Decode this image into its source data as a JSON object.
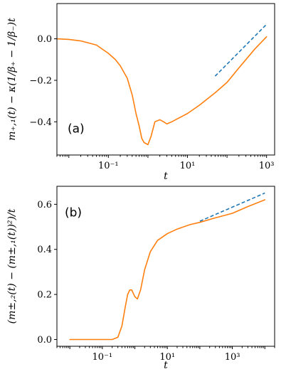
{
  "chart_data": [
    {
      "type": "line",
      "panel_label": "(a)",
      "xlabel": "t",
      "ylabel": "m₊,₁(t) − κ(1/β₊ − 1/β₋)t",
      "xscale": "log",
      "xlim": [
        0.005,
        1600
      ],
      "ylim": [
        -0.56,
        0.17
      ],
      "xticks": [
        0.1,
        10,
        1000
      ],
      "xtick_labels": [
        "10⁻¹",
        "10¹",
        "10³"
      ],
      "yticks": [
        0.0,
        -0.2,
        -0.4
      ],
      "ytick_labels": [
        "0.0",
        "−0.2",
        "−0.4"
      ],
      "series": [
        {
          "color": "#ff7f0e",
          "style": "solid",
          "x": [
            0.005,
            0.01,
            0.02,
            0.05,
            0.1,
            0.15,
            0.2,
            0.3,
            0.4,
            0.5,
            0.6,
            0.7,
            0.8,
            1.0,
            1.2,
            1.5,
            2.0,
            2.5,
            3.0,
            4.0,
            5.0,
            10,
            20,
            50,
            100,
            200,
            500,
            1000
          ],
          "y": [
            0.0,
            -0.003,
            -0.01,
            -0.03,
            -0.07,
            -0.1,
            -0.13,
            -0.19,
            -0.27,
            -0.36,
            -0.42,
            -0.48,
            -0.5,
            -0.51,
            -0.47,
            -0.4,
            -0.39,
            -0.4,
            -0.41,
            -0.4,
            -0.39,
            -0.36,
            -0.32,
            -0.26,
            -0.21,
            -0.14,
            -0.05,
            0.01
          ]
        },
        {
          "color": "#1f77b4",
          "style": "dashed",
          "x": [
            50,
            1000
          ],
          "y": [
            -0.18,
            0.07
          ]
        }
      ]
    },
    {
      "type": "line",
      "panel_label": "(b)",
      "xlabel": "t",
      "ylabel": "(m±,₂(t) − (m±,₁(t))²)/t",
      "xscale": "log",
      "xlim": [
        0.004,
        20000
      ],
      "ylim": [
        -0.03,
        0.68
      ],
      "xticks": [
        0.1,
        10,
        1000
      ],
      "xtick_labels": [
        "10⁻¹",
        "10¹",
        "10³"
      ],
      "yticks": [
        0.0,
        0.2,
        0.4,
        0.6
      ],
      "ytick_labels": [
        "0.0",
        "0.2",
        "0.4",
        "0.6"
      ],
      "series": [
        {
          "color": "#ff7f0e",
          "style": "solid",
          "x": [
            0.01,
            0.05,
            0.1,
            0.2,
            0.3,
            0.4,
            0.5,
            0.6,
            0.7,
            0.8,
            1.0,
            1.2,
            1.5,
            2.0,
            3.0,
            5.0,
            10,
            20,
            50,
            100,
            300,
            1000,
            3000,
            10000
          ],
          "y": [
            0.0,
            0.0,
            0.0,
            0.0,
            0.01,
            0.06,
            0.14,
            0.2,
            0.22,
            0.22,
            0.19,
            0.18,
            0.22,
            0.31,
            0.39,
            0.44,
            0.47,
            0.49,
            0.51,
            0.52,
            0.54,
            0.56,
            0.59,
            0.62
          ]
        },
        {
          "color": "#1f77b4",
          "style": "dashed",
          "x": [
            100,
            10000
          ],
          "y": [
            0.525,
            0.65
          ]
        }
      ]
    }
  ]
}
